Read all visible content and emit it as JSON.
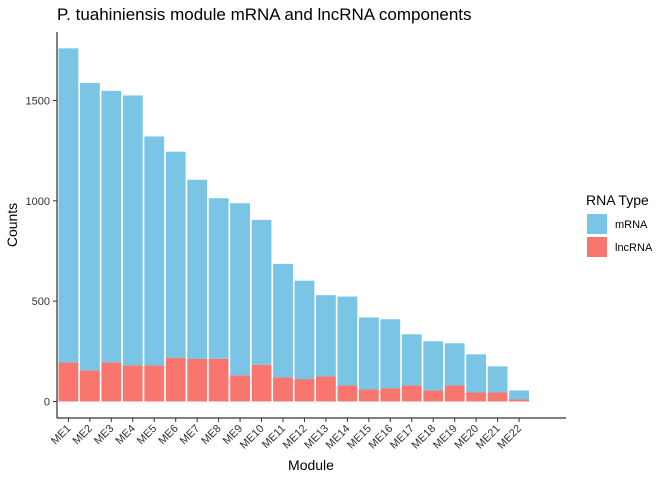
{
  "chart_data": {
    "type": "bar",
    "stacked": true,
    "title": "P. tuahiniensis module mRNA and lncRNA components",
    "xlabel": "Module",
    "ylabel": "Counts",
    "ylim": [
      0,
      1800
    ],
    "yticks": [
      0,
      500,
      1000,
      1500
    ],
    "grid": false,
    "legend_position": "right",
    "legend_title": "RNA Type",
    "categories": [
      "ME1",
      "ME2",
      "ME3",
      "ME4",
      "ME5",
      "ME6",
      "ME7",
      "ME8",
      "ME9",
      "ME10",
      "ME11",
      "ME12",
      "ME13",
      "ME14",
      "ME15",
      "ME16",
      "ME17",
      "ME18",
      "ME19",
      "ME20",
      "ME21",
      "ME22"
    ],
    "series": [
      {
        "name": "mRNA",
        "color": "#7ac4e6",
        "values": [
          1565,
          1432,
          1353,
          1345,
          1141,
          1027,
          893,
          800,
          858,
          722,
          566,
          490,
          405,
          443,
          359,
          345,
          255,
          245,
          210,
          190,
          130,
          45
        ]
      },
      {
        "name": "lncRNA",
        "color": "#f8766d",
        "values": [
          195,
          155,
          195,
          180,
          180,
          218,
          212,
          213,
          130,
          183,
          120,
          112,
          125,
          80,
          60,
          65,
          80,
          55,
          80,
          45,
          45,
          10
        ]
      }
    ]
  }
}
